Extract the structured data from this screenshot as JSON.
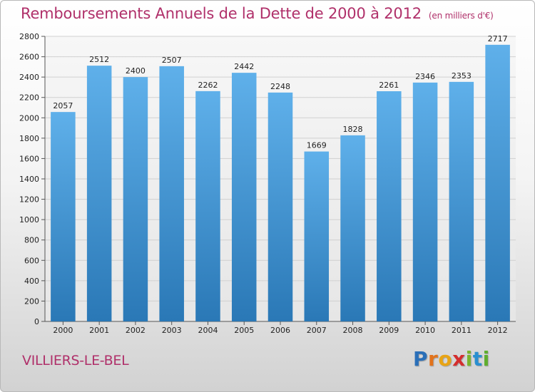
{
  "header": {
    "title": "Remboursements Annuels de la Dette de 2000 à 2012",
    "unit": "(en milliers d'€)"
  },
  "footer": {
    "commune": "VILLIERS-LE-BEL",
    "brand_letters": [
      "P",
      "r",
      "o",
      "x",
      "i",
      "t",
      "i"
    ],
    "brand_colors": [
      "#2a6fb8",
      "#e2731c",
      "#e8a415",
      "#d42e2e",
      "#7ab52c",
      "#2a8fd0",
      "#5fae2e"
    ]
  },
  "colors": {
    "title": "#b0306a",
    "bar_light": "#5fb0ea",
    "bar_dark": "#2a78b6",
    "grid": "#d0d0d0",
    "axis_text": "#222222"
  },
  "chart_data": {
    "type": "bar",
    "title": "Remboursements Annuels de la Dette de 2000 à 2012",
    "ylabel": "en milliers d'€",
    "xlabel": "",
    "categories": [
      "2000",
      "2001",
      "2002",
      "2003",
      "2004",
      "2005",
      "2006",
      "2007",
      "2008",
      "2009",
      "2010",
      "2011",
      "2012"
    ],
    "values": [
      2057,
      2512,
      2400,
      2507,
      2262,
      2442,
      2248,
      1669,
      1828,
      2261,
      2346,
      2353,
      2717
    ],
    "ylim": [
      0,
      2800
    ],
    "yticks": [
      0,
      200,
      400,
      600,
      800,
      1000,
      1200,
      1400,
      1600,
      1800,
      2000,
      2200,
      2400,
      2600,
      2800
    ],
    "grid": true
  }
}
